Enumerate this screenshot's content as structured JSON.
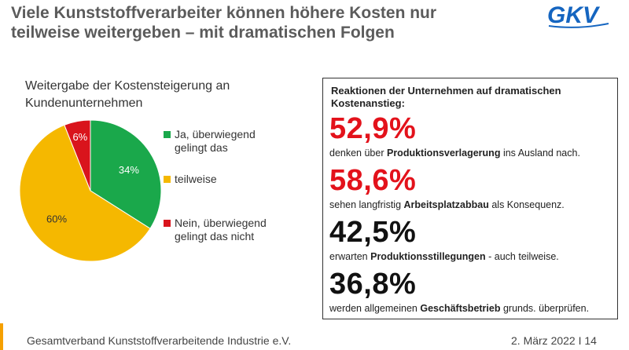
{
  "header": {
    "title_line1": "Viele Kunststoffverarbeiter können höhere Kosten nur",
    "title_line2": "teilweise weitergeben – mit dramatischen Folgen",
    "logo_text": "GKV"
  },
  "chart_data": {
    "type": "pie",
    "title_line1": "Weitergabe der Kostensteigerung an",
    "title_line2": "Kundenunternehmen",
    "slices": [
      {
        "label_line1": "Ja, überwiegend",
        "label_line2": "gelingt das",
        "value": 34,
        "display": "34%",
        "color": "#1aa84b"
      },
      {
        "label_line1": "teilweise",
        "label_line2": "",
        "value": 60,
        "display": "60%",
        "color": "#f5b800"
      },
      {
        "label_line1": "Nein, überwiegend",
        "label_line2": "gelingt das nicht",
        "value": 6,
        "display": "6%",
        "color": "#d9141c"
      }
    ],
    "legend_position": "right"
  },
  "reactions": {
    "heading_line1": "Reaktionen der Unternehmen auf dramatischen",
    "heading_line2": "Kostenanstieg:",
    "items": [
      {
        "value": "52,9%",
        "color": "#e3121b",
        "pre": "denken über ",
        "bold": "Produktionsverlagerung",
        "post": " ins Ausland nach."
      },
      {
        "value": "58,6%",
        "color": "#e3121b",
        "pre": "sehen langfristig ",
        "bold": "Arbeitsplatzabbau",
        "post": " als Konsequenz."
      },
      {
        "value": "42,5%",
        "color": "#111111",
        "pre": "erwarten ",
        "bold": "Produktionsstillegungen",
        "post": " - auch teilweise."
      },
      {
        "value": "36,8%",
        "color": "#111111",
        "pre": "werden allgemeinen ",
        "bold": "Geschäftsbetrieb",
        "post": " grunds. überprüfen."
      }
    ]
  },
  "footer": {
    "organization": "Gesamtverband Kunststoffverarbeitende Industrie e.V.",
    "date_page": "2. März 2022 I 14",
    "accent_color": "#f5a000"
  }
}
